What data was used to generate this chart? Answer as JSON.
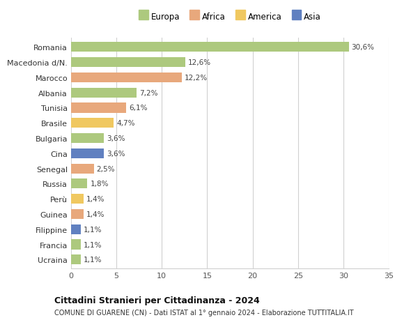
{
  "categories": [
    "Romania",
    "Macedonia d/N.",
    "Marocco",
    "Albania",
    "Tunisia",
    "Brasile",
    "Bulgaria",
    "Cina",
    "Senegal",
    "Russia",
    "Perù",
    "Guinea",
    "Filippine",
    "Francia",
    "Ucraina"
  ],
  "values": [
    30.6,
    12.6,
    12.2,
    7.2,
    6.1,
    4.7,
    3.6,
    3.6,
    2.5,
    1.8,
    1.4,
    1.4,
    1.1,
    1.1,
    1.1
  ],
  "labels": [
    "30,6%",
    "12,6%",
    "12,2%",
    "7,2%",
    "6,1%",
    "4,7%",
    "3,6%",
    "3,6%",
    "2,5%",
    "1,8%",
    "1,4%",
    "1,4%",
    "1,1%",
    "1,1%",
    "1,1%"
  ],
  "colors": [
    "#adc97e",
    "#adc97e",
    "#e8a87c",
    "#adc97e",
    "#e8a87c",
    "#f0c860",
    "#adc97e",
    "#6080c0",
    "#e8a87c",
    "#adc97e",
    "#f0c860",
    "#e8a87c",
    "#6080c0",
    "#adc97e",
    "#adc97e"
  ],
  "legend": [
    {
      "label": "Europa",
      "color": "#adc97e"
    },
    {
      "label": "Africa",
      "color": "#e8a87c"
    },
    {
      "label": "America",
      "color": "#f0c860"
    },
    {
      "label": "Asia",
      "color": "#6080c0"
    }
  ],
  "title": "Cittadini Stranieri per Cittadinanza - 2024",
  "subtitle": "COMUNE DI GUARENE (CN) - Dati ISTAT al 1° gennaio 2024 - Elaborazione TUTTITALIA.IT",
  "xlim": [
    0,
    35
  ],
  "xticks": [
    0,
    5,
    10,
    15,
    20,
    25,
    30,
    35
  ],
  "bg_color": "#ffffff",
  "grid_color": "#d0d0d0"
}
